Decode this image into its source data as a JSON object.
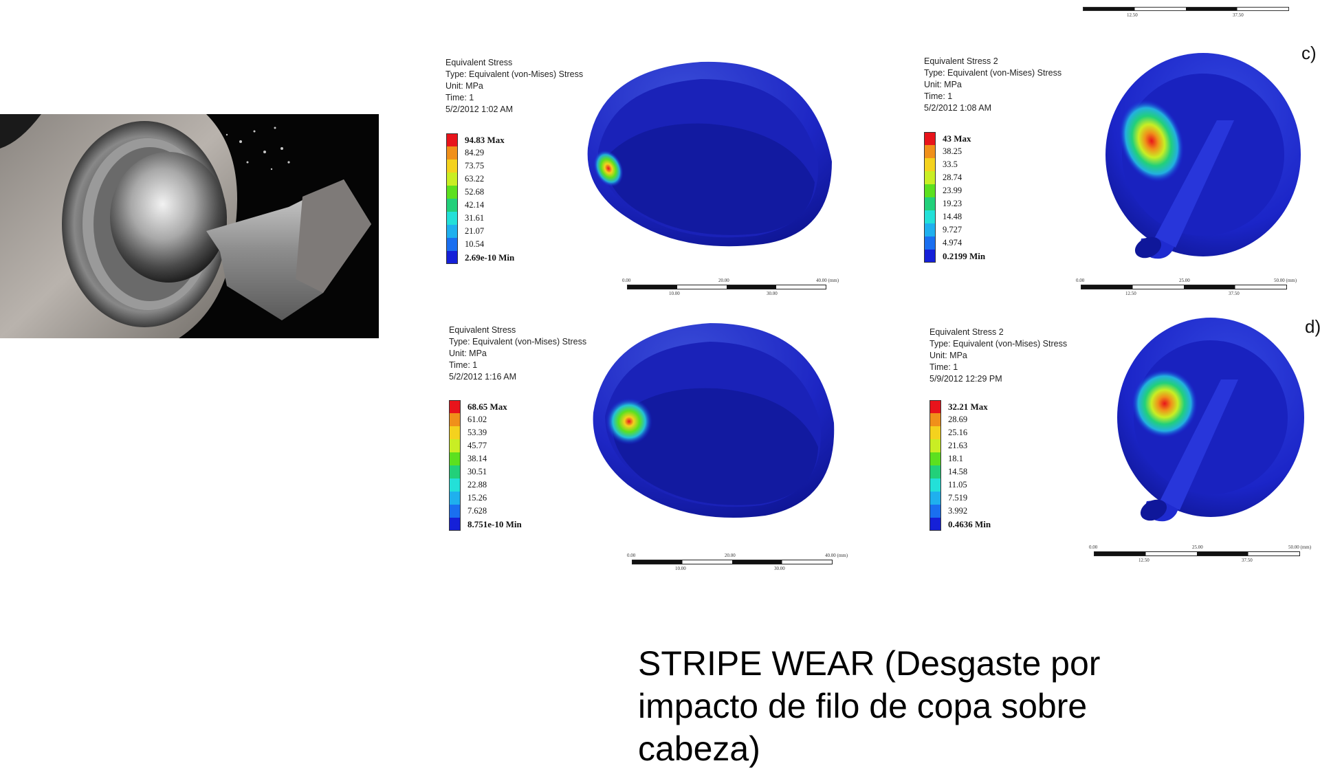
{
  "panels": [
    {
      "id": "a",
      "title": "Equivalent Stress",
      "type": "Type: Equivalent (von-Mises) Stress",
      "unit": "Unit: MPa",
      "time": "Time: 1",
      "date": "5/2/2012 1:02 AM",
      "legend": [
        "94.83 Max",
        "84.29",
        "73.75",
        "63.22",
        "52.68",
        "42.14",
        "31.61",
        "21.07",
        "10.54",
        "2.69e-10 Min"
      ],
      "scale_top": [
        "0.00",
        "20.00",
        "40.00 (mm)"
      ],
      "scale_bottom": [
        "10.00",
        "30.00"
      ]
    },
    {
      "id": "c",
      "title": "Equivalent Stress 2",
      "type": "Type: Equivalent (von-Mises) Stress",
      "unit": "Unit: MPa",
      "time": "Time: 1",
      "date": "5/2/2012 1:08 AM",
      "legend": [
        "43 Max",
        "38.25",
        "33.5",
        "28.74",
        "23.99",
        "19.23",
        "14.48",
        "9.727",
        "4.974",
        "0.2199 Min"
      ],
      "scale_top": [
        "0.00",
        "25.00",
        "50.00 (mm)"
      ],
      "scale_bottom": [
        "12.50",
        "37.50"
      ],
      "tag": "c)"
    },
    {
      "id": "b",
      "title": "Equivalent Stress",
      "type": "Type: Equivalent (von-Mises) Stress",
      "unit": "Unit: MPa",
      "time": "Time: 1",
      "date": "5/2/2012 1:16 AM",
      "legend": [
        "68.65 Max",
        "61.02",
        "53.39",
        "45.77",
        "38.14",
        "30.51",
        "22.88",
        "15.26",
        "7.628",
        "8.751e-10 Min"
      ],
      "scale_top": [
        "0.00",
        "20.00",
        "40.00 (mm)"
      ],
      "scale_bottom": [
        "10.00",
        "30.00"
      ]
    },
    {
      "id": "d",
      "title": "Equivalent Stress 2",
      "type": "Type: Equivalent (von-Mises) Stress",
      "unit": "Unit: MPa",
      "time": "Time: 1",
      "date": "5/9/2012 12:29 PM",
      "legend": [
        "32.21 Max",
        "28.69",
        "25.16",
        "21.63",
        "18.1",
        "14.58",
        "11.05",
        "7.519",
        "3.992",
        "0.4636 Min"
      ],
      "scale_top": [
        "0.00",
        "25.00",
        "50.00 (mm)"
      ],
      "scale_bottom": [
        "12.50",
        "37.50"
      ],
      "tag": "d)"
    }
  ],
  "top_scale": {
    "scale_bottom": [
      "12.50",
      "37.50"
    ]
  },
  "legend_colors": [
    "#e8141b",
    "#f0901a",
    "#f4d21e",
    "#c9ee24",
    "#5ce01f",
    "#22d07a",
    "#23e0d8",
    "#1fb0ee",
    "#1a6ff0",
    "#1520d8"
  ],
  "caption": "STRIPE WEAR  (Desgaste por impacto de filo de copa sobre cabeza)"
}
